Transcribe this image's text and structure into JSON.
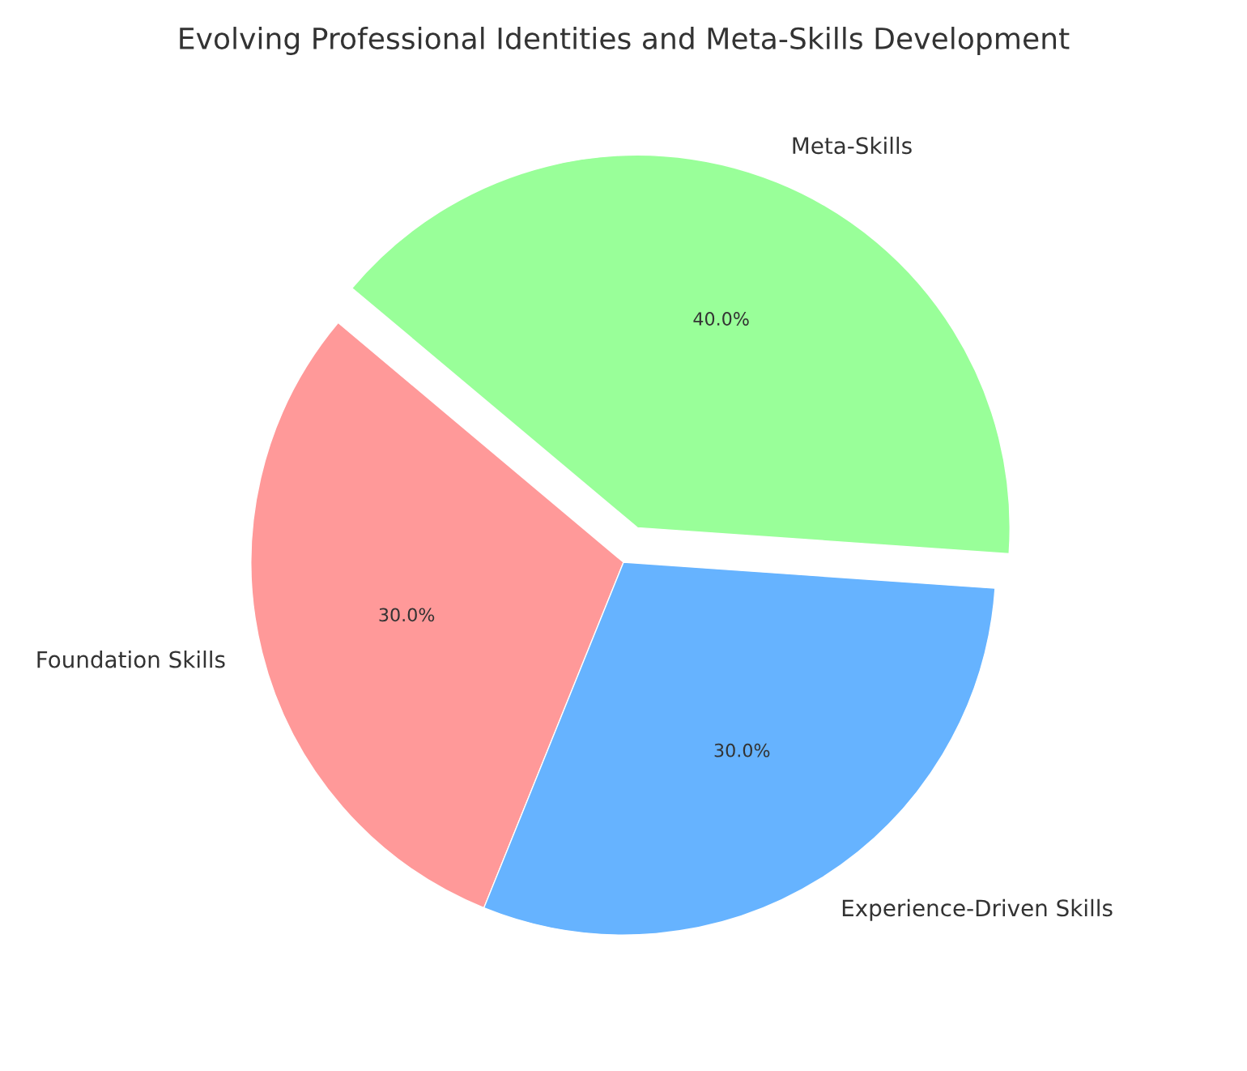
{
  "chart_data": {
    "type": "pie",
    "title": "Evolving Professional Identities and Meta-Skills Development",
    "categories": [
      "Foundation Skills",
      "Experience-Driven Skills",
      "Meta-Skills"
    ],
    "values": [
      30,
      30,
      40
    ],
    "value_labels": [
      "30.0%",
      "30.0%",
      "40.0%"
    ],
    "colors": [
      "#ff9999",
      "#66b3ff",
      "#99ff99"
    ]
  }
}
